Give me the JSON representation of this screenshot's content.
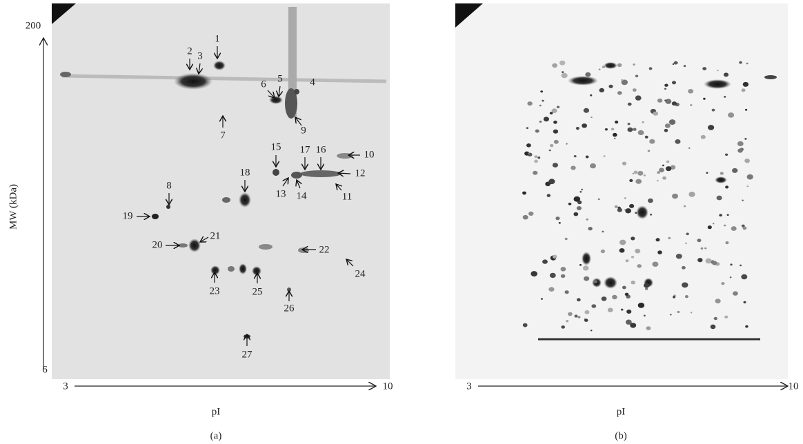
{
  "panels": [
    {
      "caption": "(a)",
      "y_axis": {
        "label": "MW (kDa)",
        "top": "200",
        "bottom": "6"
      },
      "x_axis": {
        "label": "pI",
        "left": "3",
        "right": "10"
      },
      "spots": [
        "1",
        "2",
        "3",
        "4",
        "5",
        "6",
        "7",
        "8",
        "9",
        "10",
        "11",
        "12",
        "13",
        "14",
        "15",
        "16",
        "17",
        "18",
        "19",
        "20",
        "21",
        "22",
        "23",
        "24",
        "25",
        "26",
        "27"
      ]
    },
    {
      "caption": "(b)",
      "x_axis": {
        "label": "pI",
        "left": "3",
        "right": "10"
      }
    }
  ]
}
